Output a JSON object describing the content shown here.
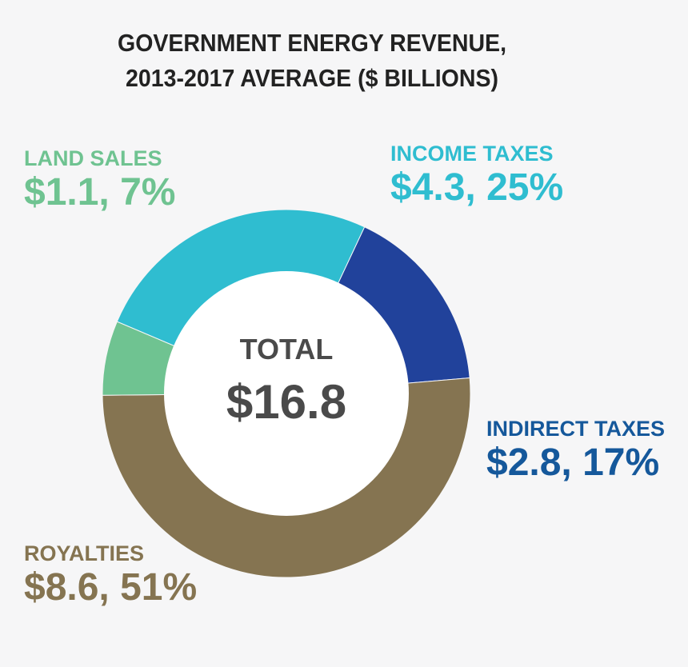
{
  "chart_data": {
    "type": "pie",
    "title": [
      "GOVERNMENT ENERGY REVENUE,",
      "2013-2017 AVERAGE ($ BILLIONS)"
    ],
    "center": {
      "label": "TOTAL",
      "value": "$16.8"
    },
    "slices": [
      {
        "label": "INCOME TAXES",
        "value": 4.3,
        "percent": 25,
        "value_text": "$4.3, 25%",
        "color": "#2fbdd0",
        "label_color": "#2fbdd0"
      },
      {
        "label": "INDIRECT TAXES",
        "value": 2.8,
        "percent": 17,
        "value_text": "$2.8, 17%",
        "color": "#21429b",
        "label_color": "#15589b"
      },
      {
        "label": "ROYALTIES",
        "value": 8.6,
        "percent": 51,
        "value_text": "$8.6, 51%",
        "color": "#857451",
        "label_color": "#857451"
      },
      {
        "label": "LAND SALES",
        "value": 1.1,
        "percent": 7,
        "value_text": "$1.1, 7%",
        "color": "#6fc391",
        "label_color": "#6fc391"
      }
    ]
  }
}
